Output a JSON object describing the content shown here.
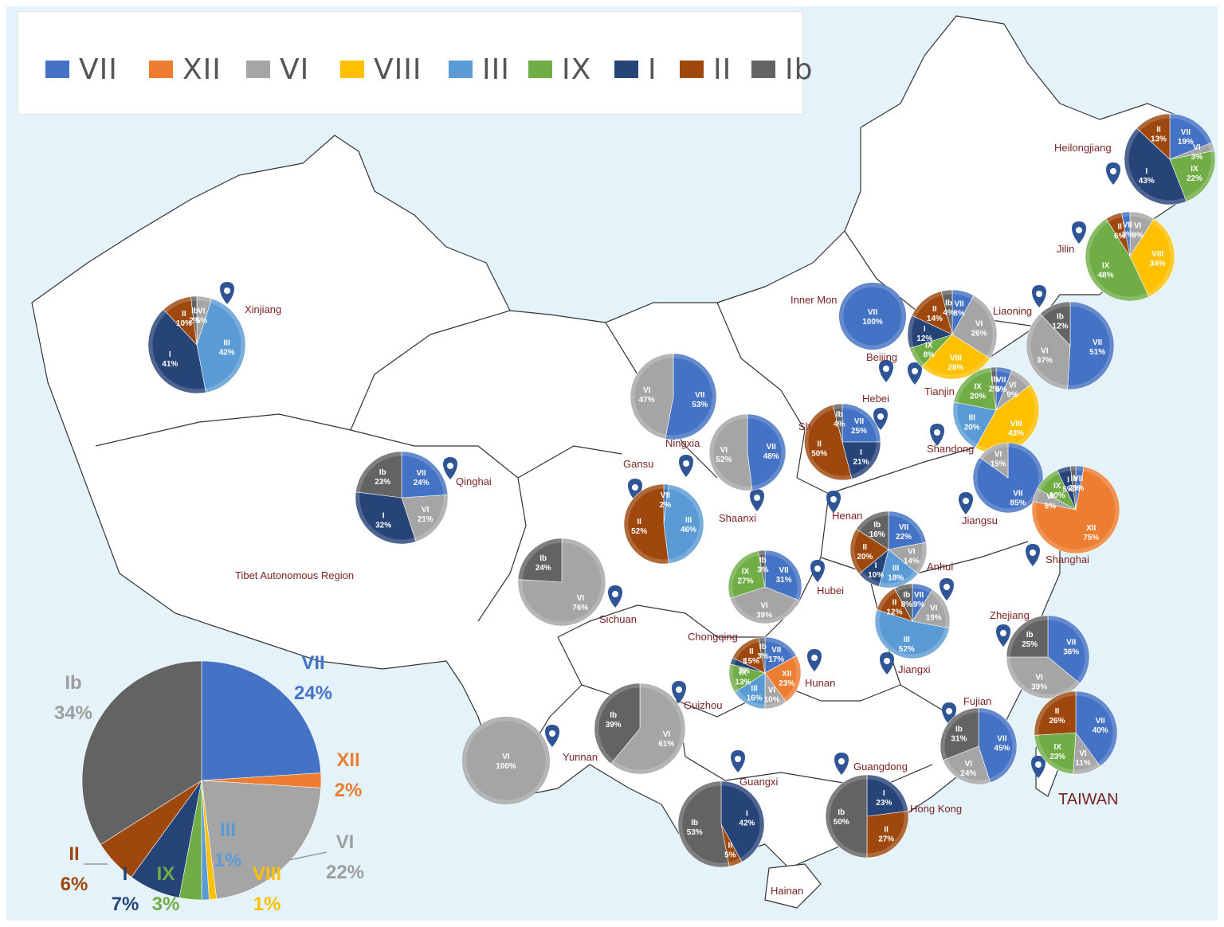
{
  "colors": {
    "VII": "#4472c4",
    "XII": "#ed7d31",
    "VI": "#a5a5a5",
    "VIII": "#ffc000",
    "III": "#5b9bd5",
    "IX": "#70ad47",
    "I": "#264478",
    "II": "#9e480e",
    "Ib": "#636363"
  },
  "legend": [
    "VII",
    "XII",
    "VI",
    "VIII",
    "III",
    "IX",
    "I",
    "II",
    "Ib"
  ],
  "taiwan_caption": "TAIWAN",
  "region_labels": [
    "Heilongjiang",
    "Jilin",
    "Liaoning",
    "Inner Mon",
    "Beijing",
    "Tianjin",
    "Hebei",
    "Shandong",
    "Xinjiang",
    "Qinghai",
    "Tibet Autonomous Region",
    "Gansu",
    "Ningxia",
    "Shaanxi",
    "Henan",
    "Jiangsu",
    "Shanghai",
    "Anhui",
    "Hubei",
    "Sichuan",
    "Chongqing",
    "Hunan",
    "Jiangxi",
    "Zhejiang",
    "Fujian",
    "Guizhou",
    "Yunnan",
    "Guangxi",
    "Guangdong",
    "Hong Kong",
    "Hainan",
    "Sh"
  ],
  "chart_data": {
    "type": "pie",
    "national": {
      "slices": [
        {
          "name": "VII",
          "value": 24,
          "label": "24%"
        },
        {
          "name": "XII",
          "value": 2,
          "label": "2%"
        },
        {
          "name": "VI",
          "value": 22,
          "label": "22%"
        },
        {
          "name": "VIII",
          "value": 1,
          "label": "1%"
        },
        {
          "name": "III",
          "value": 1,
          "label": "1%"
        },
        {
          "name": "IX",
          "value": 3,
          "label": "3%"
        },
        {
          "name": "I",
          "value": 7,
          "label": "7%"
        },
        {
          "name": "II",
          "value": 6,
          "label": "6%"
        },
        {
          "name": "Ib",
          "value": 34,
          "label": "34%"
        }
      ]
    },
    "provinces": [
      {
        "region": "Heilongjiang",
        "slices": [
          {
            "name": "VII",
            "value": 19
          },
          {
            "name": "VI",
            "value": 3
          },
          {
            "name": "IX",
            "value": 22
          },
          {
            "name": "I",
            "value": 43
          },
          {
            "name": "II",
            "value": 13
          }
        ]
      },
      {
        "region": "Jilin",
        "slices": [
          {
            "name": "VI",
            "value": 9
          },
          {
            "name": "VIII",
            "value": 34
          },
          {
            "name": "IX",
            "value": 48
          },
          {
            "name": "II",
            "value": 6
          },
          {
            "name": "VII",
            "value": 3
          }
        ]
      },
      {
        "region": "Liaoning",
        "slices": [
          {
            "name": "VII",
            "value": 51
          },
          {
            "name": "VI",
            "value": 37
          },
          {
            "name": "Ib",
            "value": 12
          }
        ]
      },
      {
        "region": "Inner Mongolia",
        "slices": [
          {
            "name": "VII",
            "value": 100
          }
        ]
      },
      {
        "region": "Beijing",
        "slices": [
          {
            "name": "VII",
            "value": 8
          },
          {
            "name": "VI",
            "value": 26
          },
          {
            "name": "VIII",
            "value": 28
          },
          {
            "name": "IX",
            "value": 8
          },
          {
            "name": "I",
            "value": 12
          },
          {
            "name": "II",
            "value": 14
          },
          {
            "name": "Ib",
            "value": 4
          }
        ]
      },
      {
        "region": "Tianjin",
        "slices": [
          {
            "name": "VII",
            "value": 6
          },
          {
            "name": "VI",
            "value": 9
          },
          {
            "name": "VIII",
            "value": 43
          },
          {
            "name": "III",
            "value": 20
          },
          {
            "name": "IX",
            "value": 20
          },
          {
            "name": "Ib",
            "value": 2
          }
        ]
      },
      {
        "region": "Shanxi",
        "slices": [
          {
            "name": "VII",
            "value": 25
          },
          {
            "name": "I",
            "value": 21
          },
          {
            "name": "II",
            "value": 50
          },
          {
            "name": "Ib",
            "value": 4
          }
        ]
      },
      {
        "region": "Shandong",
        "slices": [
          {
            "name": "VII",
            "value": 85
          },
          {
            "name": "VI",
            "value": 15
          }
        ]
      },
      {
        "region": "Jiangsu",
        "slices": [
          {
            "name": "VII",
            "value": 3
          },
          {
            "name": "XII",
            "value": 75
          },
          {
            "name": "VI",
            "value": 5
          },
          {
            "name": "IX",
            "value": 10
          },
          {
            "name": "I",
            "value": 5
          },
          {
            "name": "Ib",
            "value": 2
          }
        ]
      },
      {
        "region": "Xinjiang",
        "slices": [
          {
            "name": "VI",
            "value": 5
          },
          {
            "name": "III",
            "value": 42
          },
          {
            "name": "I",
            "value": 41
          },
          {
            "name": "II",
            "value": 10
          },
          {
            "name": "Ib",
            "value": 2
          }
        ]
      },
      {
        "region": "Qinghai",
        "slices": [
          {
            "name": "VII",
            "value": 24
          },
          {
            "name": "VI",
            "value": 21
          },
          {
            "name": "I",
            "value": 32
          },
          {
            "name": "Ib",
            "value": 23
          }
        ]
      },
      {
        "region": "Ningxia",
        "slices": [
          {
            "name": "VII",
            "value": 53
          },
          {
            "name": "VI",
            "value": 47
          }
        ]
      },
      {
        "region": "Shaanxi",
        "slices": [
          {
            "name": "VII",
            "value": 48
          },
          {
            "name": "VI",
            "value": 52
          }
        ]
      },
      {
        "region": "Gansu",
        "slices": [
          {
            "name": "VII",
            "value": 2
          },
          {
            "name": "III",
            "value": 46
          },
          {
            "name": "II",
            "value": 52
          }
        ]
      },
      {
        "region": "Henan",
        "slices": [
          {
            "name": "VII",
            "value": 22
          },
          {
            "name": "VI",
            "value": 14
          },
          {
            "name": "III",
            "value": 18
          },
          {
            "name": "I",
            "value": 10
          },
          {
            "name": "II",
            "value": 20
          },
          {
            "name": "Ib",
            "value": 16
          }
        ]
      },
      {
        "region": "Sichuan",
        "slices": [
          {
            "name": "VI",
            "value": 76
          },
          {
            "name": "Ib",
            "value": 24
          }
        ]
      },
      {
        "region": "Hubei",
        "slices": [
          {
            "name": "VII",
            "value": 31
          },
          {
            "name": "VI",
            "value": 39
          },
          {
            "name": "IX",
            "value": 27
          },
          {
            "name": "Ib",
            "value": 3
          }
        ]
      },
      {
        "region": "Anhui",
        "slices": [
          {
            "name": "VII",
            "value": 9
          },
          {
            "name": "VI",
            "value": 19
          },
          {
            "name": "III",
            "value": 52
          },
          {
            "name": "II",
            "value": 12
          },
          {
            "name": "Ib",
            "value": 8
          }
        ]
      },
      {
        "region": "Hunan",
        "slices": [
          {
            "name": "VII",
            "value": 17
          },
          {
            "name": "XII",
            "value": 23
          },
          {
            "name": "VI",
            "value": 10
          },
          {
            "name": "III",
            "value": 16
          },
          {
            "name": "IX",
            "value": 13
          },
          {
            "name": "I",
            "value": 3
          },
          {
            "name": "II",
            "value": 15
          },
          {
            "name": "Ib",
            "value": 3
          }
        ]
      },
      {
        "region": "Zhejiang",
        "slices": [
          {
            "name": "VII",
            "value": 36
          },
          {
            "name": "VI",
            "value": 39
          },
          {
            "name": "Ib",
            "value": 25
          }
        ]
      },
      {
        "region": "Guizhou",
        "slices": [
          {
            "name": "VI",
            "value": 61
          },
          {
            "name": "Ib",
            "value": 39
          }
        ]
      },
      {
        "region": "Yunnan",
        "slices": [
          {
            "name": "VI",
            "value": 100
          }
        ]
      },
      {
        "region": "Fujian",
        "slices": [
          {
            "name": "VII",
            "value": 45
          },
          {
            "name": "VI",
            "value": 24
          },
          {
            "name": "Ib",
            "value": 31
          }
        ]
      },
      {
        "region": "Taiwan",
        "slices": [
          {
            "name": "VII",
            "value": 40
          },
          {
            "name": "VI",
            "value": 11
          },
          {
            "name": "IX",
            "value": 23
          },
          {
            "name": "II",
            "value": 26
          }
        ]
      },
      {
        "region": "Guangxi",
        "slices": [
          {
            "name": "I",
            "value": 42
          },
          {
            "name": "II",
            "value": 5
          },
          {
            "name": "Ib",
            "value": 53
          }
        ]
      },
      {
        "region": "Guangdong",
        "slices": [
          {
            "name": "I",
            "value": 23
          },
          {
            "name": "II",
            "value": 27
          },
          {
            "name": "Ib",
            "value": 50
          }
        ]
      }
    ]
  }
}
